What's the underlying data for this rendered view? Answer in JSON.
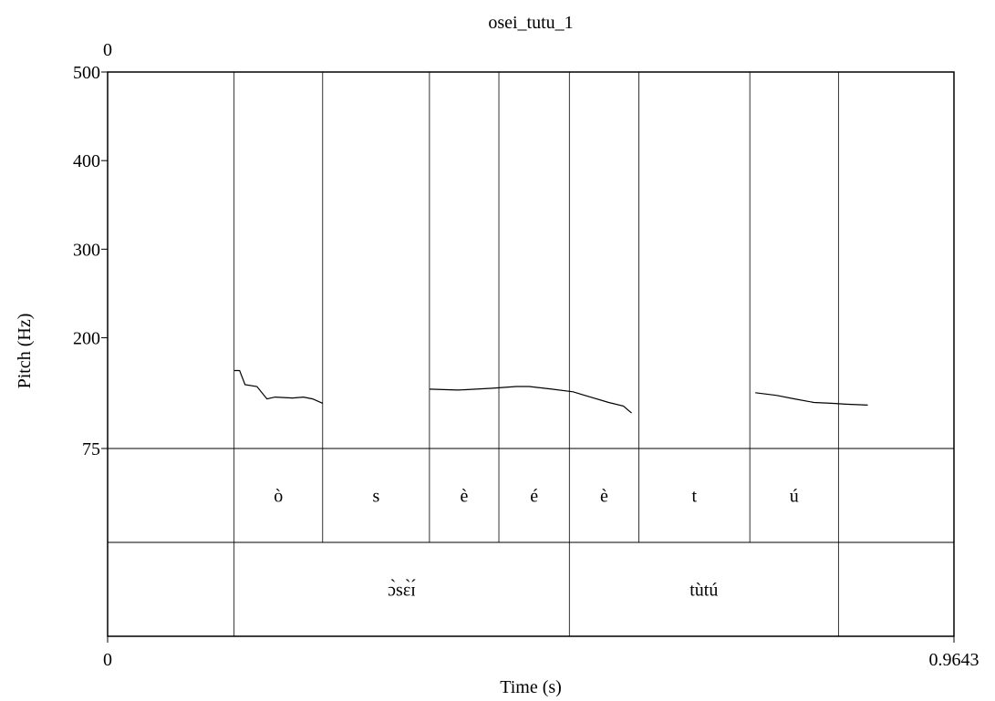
{
  "chart_data": {
    "type": "line",
    "title": "osei_tutu_1",
    "top_left_label": "0",
    "xlabel": "Time (s)",
    "ylabel": "Pitch (Hz)",
    "xlim": [
      0,
      0.9643
    ],
    "x_tick_labels": [
      "0",
      "0.9643"
    ],
    "ylim": [
      75,
      500
    ],
    "y_ticks": [
      {
        "value": 500,
        "label": "500"
      },
      {
        "value": 400,
        "label": "400"
      },
      {
        "value": 300,
        "label": "300"
      },
      {
        "value": 200,
        "label": "200"
      },
      {
        "value": 75,
        "label": "75"
      }
    ],
    "series": [
      {
        "segments": [
          [
            [
              0.1441,
              163
            ],
            [
              0.1504,
              163
            ],
            [
              0.1566,
              147
            ],
            [
              0.1701,
              145
            ],
            [
              0.1815,
              131
            ],
            [
              0.1909,
              133
            ],
            [
              0.2107,
              132
            ],
            [
              0.2232,
              133
            ],
            [
              0.2336,
              131
            ],
            [
              0.245,
              126
            ]
          ],
          [
            [
              0.3667,
              142
            ],
            [
              0.399,
              141
            ],
            [
              0.4198,
              142
            ],
            [
              0.4386,
              143
            ],
            [
              0.4657,
              145
            ],
            [
              0.4803,
              145
            ],
            [
              0.5063,
              142
            ],
            [
              0.5303,
              139
            ],
            [
              0.5501,
              133
            ],
            [
              0.5709,
              127
            ],
            [
              0.5876,
              123
            ],
            [
              0.597,
              115
            ]
          ],
          [
            [
              0.738,
              138
            ],
            [
              0.7463,
              137
            ],
            [
              0.7619,
              135
            ],
            [
              0.7828,
              131
            ],
            [
              0.8046,
              127
            ],
            [
              0.8244,
              126
            ],
            [
              0.8411,
              125
            ],
            [
              0.8661,
              124
            ]
          ]
        ]
      }
    ],
    "tiers": [
      {
        "boundaries": [
          0.1441,
          0.245,
          0.3667,
          0.4458,
          0.5261,
          0.6053,
          0.7317,
          0.8327
        ],
        "intervals": [
          {
            "label": "ò",
            "start": 0.1441,
            "end": 0.245
          },
          {
            "label": "s",
            "start": 0.245,
            "end": 0.3667
          },
          {
            "label": "è",
            "start": 0.3667,
            "end": 0.4458
          },
          {
            "label": "é",
            "start": 0.4458,
            "end": 0.5261
          },
          {
            "label": "è",
            "start": 0.5261,
            "end": 0.6053
          },
          {
            "label": "t",
            "start": 0.6053,
            "end": 0.7317
          },
          {
            "label": "ú",
            "start": 0.7317,
            "end": 0.8327
          }
        ]
      },
      {
        "boundaries": [
          0.1441,
          0.5261,
          0.8327
        ],
        "intervals": [
          {
            "label": "ɔ̀sɛ̀ɪ́",
            "start": 0.1441,
            "end": 0.5261
          },
          {
            "label": "tùtú",
            "start": 0.5261,
            "end": 0.8327
          }
        ]
      }
    ],
    "grid": false,
    "legend": "none"
  }
}
